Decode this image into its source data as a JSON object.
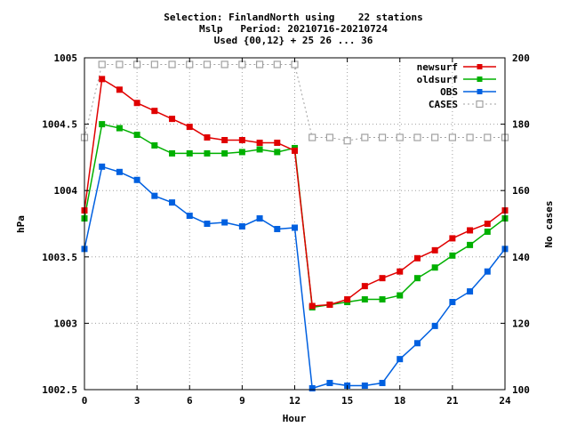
{
  "chart_data": {
    "type": "line",
    "title_lines": [
      "Selection: FinlandNorth using    22 stations",
      "Mslp   Period: 20210716-20210724",
      "Used {00,12} + 25 26 ... 36"
    ],
    "xlabel": "Hour",
    "ylabel": "hPa",
    "y2label": "No cases",
    "xlim": [
      0,
      24
    ],
    "ylim": [
      1002.5,
      1005
    ],
    "y2lim": [
      100,
      200
    ],
    "x_ticks": [
      "0",
      "3",
      "6",
      "9",
      "12",
      "15",
      "18",
      "21",
      "24"
    ],
    "y_ticks": [
      "1002.5",
      "1003",
      "1003.5",
      "1004",
      "1004.5",
      "1005"
    ],
    "y2_ticks": [
      "100",
      "120",
      "140",
      "160",
      "180",
      "200"
    ],
    "grid": true,
    "legend_position": "top-right",
    "x": [
      0,
      1,
      2,
      3,
      4,
      5,
      6,
      7,
      8,
      9,
      10,
      11,
      12,
      13,
      14,
      15,
      16,
      17,
      18,
      19,
      20,
      21,
      22,
      23,
      24
    ],
    "series": [
      {
        "name": "newsurf",
        "axis": "y",
        "color": "#e00000",
        "marker": "filled-square",
        "dash": false,
        "values": [
          1003.85,
          1004.84,
          1004.76,
          1004.66,
          1004.6,
          1004.54,
          1004.48,
          1004.4,
          1004.38,
          1004.38,
          1004.36,
          1004.36,
          1004.3,
          1003.13,
          1003.14,
          1003.18,
          1003.28,
          1003.34,
          1003.39,
          1003.49,
          1003.55,
          1003.64,
          1003.7,
          1003.75,
          1003.85
        ]
      },
      {
        "name": "oldsurf",
        "axis": "y",
        "color": "#00b000",
        "marker": "filled-square",
        "dash": false,
        "values": [
          1003.79,
          1004.5,
          1004.47,
          1004.42,
          1004.34,
          1004.28,
          1004.28,
          1004.28,
          1004.28,
          1004.29,
          1004.31,
          1004.29,
          1004.32,
          1003.12,
          1003.14,
          1003.16,
          1003.18,
          1003.18,
          1003.21,
          1003.34,
          1003.42,
          1003.51,
          1003.59,
          1003.69,
          1003.79
        ]
      },
      {
        "name": "OBS",
        "axis": "y",
        "color": "#0060e0",
        "marker": "filled-square",
        "dash": false,
        "values": [
          1003.56,
          1004.18,
          1004.14,
          1004.08,
          1003.96,
          1003.91,
          1003.81,
          1003.75,
          1003.76,
          1003.73,
          1003.79,
          1003.71,
          1003.72,
          1002.51,
          1002.55,
          1002.53,
          1002.53,
          1002.55,
          1002.73,
          1002.85,
          1002.98,
          1003.16,
          1003.24,
          1003.39,
          1003.56
        ]
      },
      {
        "name": "CASES",
        "axis": "y2",
        "color": "#a0a0a0",
        "marker": "open-square",
        "dash": true,
        "values": [
          176,
          198,
          198,
          198,
          198,
          198,
          198,
          198,
          198,
          198,
          198,
          198,
          198,
          176,
          176,
          175,
          176,
          176,
          176,
          176,
          176,
          176,
          176,
          176,
          176
        ]
      }
    ]
  }
}
